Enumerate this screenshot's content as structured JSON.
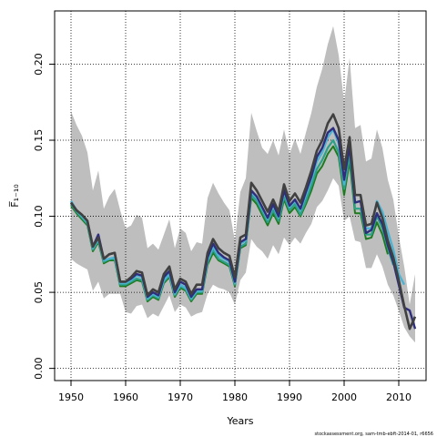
{
  "chart_data": {
    "type": "line",
    "title": "",
    "xlabel": "Years",
    "ylabel": "F̅₁₋₁₀",
    "xlim": [
      1947,
      2015
    ],
    "ylim": [
      -0.008,
      0.235
    ],
    "x_ticks": [
      1950,
      1960,
      1970,
      1980,
      1990,
      2000,
      2010
    ],
    "y_ticks": [
      0.0,
      0.05,
      0.1,
      0.15,
      0.2
    ],
    "y_tick_labels": [
      "0.00",
      "0.05",
      "0.10",
      "0.15",
      "0.20"
    ],
    "grid": true,
    "grid_style": "dotted",
    "confidence_band": {
      "color": "#bebebe",
      "x": [
        1950,
        1951,
        1952,
        1953,
        1954,
        1955,
        1956,
        1957,
        1958,
        1959,
        1960,
        1961,
        1962,
        1963,
        1964,
        1965,
        1966,
        1967,
        1968,
        1969,
        1970,
        1971,
        1972,
        1973,
        1974,
        1975,
        1976,
        1977,
        1978,
        1979,
        1980,
        1981,
        1982,
        1983,
        1984,
        1985,
        1986,
        1987,
        1988,
        1989,
        1990,
        1991,
        1992,
        1993,
        1994,
        1995,
        1996,
        1997,
        1998,
        1999,
        2000,
        2001,
        2002,
        2003,
        2004,
        2005,
        2006,
        2007,
        2008,
        2009,
        2010,
        2011,
        2012,
        2013
      ],
      "upper": [
        0.169,
        0.16,
        0.153,
        0.142,
        0.117,
        0.13,
        0.105,
        0.113,
        0.118,
        0.104,
        0.092,
        0.094,
        0.101,
        0.099,
        0.079,
        0.082,
        0.078,
        0.088,
        0.098,
        0.079,
        0.092,
        0.089,
        0.077,
        0.083,
        0.082,
        0.112,
        0.122,
        0.115,
        0.109,
        0.104,
        0.084,
        0.116,
        0.125,
        0.168,
        0.156,
        0.145,
        0.141,
        0.15,
        0.14,
        0.157,
        0.141,
        0.151,
        0.141,
        0.155,
        0.168,
        0.185,
        0.197,
        0.213,
        0.225,
        0.206,
        0.175,
        0.204,
        0.158,
        0.16,
        0.136,
        0.138,
        0.157,
        0.145,
        0.124,
        0.111,
        0.087,
        0.067,
        0.042,
        0.062
      ],
      "lower": [
        0.072,
        0.069,
        0.067,
        0.065,
        0.051,
        0.057,
        0.046,
        0.049,
        0.049,
        0.049,
        0.037,
        0.036,
        0.041,
        0.042,
        0.033,
        0.036,
        0.034,
        0.041,
        0.048,
        0.037,
        0.042,
        0.04,
        0.034,
        0.036,
        0.037,
        0.049,
        0.055,
        0.053,
        0.052,
        0.05,
        0.042,
        0.058,
        0.063,
        0.085,
        0.08,
        0.077,
        0.072,
        0.081,
        0.075,
        0.086,
        0.081,
        0.086,
        0.082,
        0.089,
        0.095,
        0.106,
        0.11,
        0.117,
        0.125,
        0.12,
        0.097,
        0.1,
        0.084,
        0.083,
        0.066,
        0.066,
        0.075,
        0.067,
        0.055,
        0.048,
        0.038,
        0.027,
        0.021,
        0.017
      ]
    },
    "series": [
      {
        "color": "#404040",
        "x": [
          1950,
          1951,
          1952,
          1953,
          1954,
          1955,
          1956,
          1957,
          1958,
          1959,
          1960,
          1961,
          1962,
          1963,
          1964,
          1965,
          1966,
          1967,
          1968,
          1969,
          1970,
          1971,
          1972,
          1973,
          1974,
          1975,
          1976,
          1977,
          1978,
          1979,
          1980,
          1981,
          1982,
          1983,
          1984,
          1985,
          1986,
          1987,
          1988,
          1989,
          1990,
          1991,
          1992,
          1993,
          1994,
          1995,
          1996,
          1997,
          1998,
          1999,
          2000,
          2001,
          2002,
          2003,
          2004,
          2005,
          2006,
          2007,
          2008,
          2009,
          2010,
          2011,
          2012,
          2013
        ],
        "values": [
          0.109,
          0.104,
          0.101,
          0.097,
          0.08,
          0.086,
          0.072,
          0.075,
          0.076,
          0.057,
          0.057,
          0.06,
          0.064,
          0.063,
          0.048,
          0.052,
          0.05,
          0.062,
          0.067,
          0.052,
          0.059,
          0.057,
          0.049,
          0.055,
          0.055,
          0.076,
          0.085,
          0.079,
          0.076,
          0.074,
          0.06,
          0.086,
          0.088,
          0.122,
          0.117,
          0.11,
          0.103,
          0.111,
          0.103,
          0.121,
          0.11,
          0.115,
          0.109,
          0.119,
          0.13,
          0.143,
          0.15,
          0.161,
          0.167,
          0.158,
          0.131,
          0.152,
          0.114,
          0.114,
          0.094,
          0.095,
          0.109,
          0.099,
          0.084,
          0.073,
          0.058,
          0.041,
          0.026,
          0.034
        ]
      },
      {
        "color": "#2e2e7c",
        "x": [
          1950,
          1951,
          1952,
          1953,
          1954,
          1955,
          1956,
          1957,
          1958,
          1959,
          1960,
          1961,
          1962,
          1963,
          1964,
          1965,
          1966,
          1967,
          1968,
          1969,
          1970,
          1971,
          1972,
          1973,
          1974,
          1975,
          1976,
          1977,
          1978,
          1979,
          1980,
          1981,
          1982,
          1983,
          1984,
          1985,
          1986,
          1987,
          1988,
          1989,
          1990,
          1991,
          1992,
          1993,
          1994,
          1995,
          1996,
          1997,
          1998,
          1999,
          2000,
          2001,
          2002,
          2003,
          2004,
          2005,
          2006,
          2007,
          2008,
          2009,
          2010,
          2011,
          2012,
          2013
        ],
        "values": [
          0.109,
          0.104,
          0.101,
          0.097,
          0.08,
          0.088,
          0.072,
          0.075,
          0.076,
          0.057,
          0.057,
          0.059,
          0.062,
          0.061,
          0.047,
          0.05,
          0.048,
          0.06,
          0.064,
          0.05,
          0.057,
          0.055,
          0.047,
          0.052,
          0.052,
          0.073,
          0.082,
          0.076,
          0.073,
          0.071,
          0.057,
          0.083,
          0.085,
          0.117,
          0.113,
          0.106,
          0.099,
          0.108,
          0.1,
          0.117,
          0.107,
          0.111,
          0.105,
          0.116,
          0.126,
          0.139,
          0.145,
          0.155,
          0.158,
          0.15,
          0.124,
          0.146,
          0.109,
          0.11,
          0.089,
          0.091,
          0.102,
          0.095,
          0.081,
          0.07,
          0.055,
          0.04,
          0.038,
          0.026
        ]
      },
      {
        "color": "#4eb3d3",
        "x": [
          1950,
          1951,
          1952,
          1953,
          1954,
          1955,
          1956,
          1957,
          1958,
          1959,
          1960,
          1961,
          1962,
          1963,
          1964,
          1965,
          1966,
          1967,
          1968,
          1969,
          1970,
          1971,
          1972,
          1973,
          1974,
          1975,
          1976,
          1977,
          1978,
          1979,
          1980,
          1981,
          1982,
          1983,
          1984,
          1985,
          1986,
          1987,
          1988,
          1989,
          1990,
          1991,
          1992,
          1993,
          1994,
          1995,
          1996,
          1997,
          1998,
          1999,
          2000,
          2001,
          2002,
          2003,
          2004,
          2005,
          2006,
          2007,
          2008,
          2009,
          2010,
          2011
        ],
        "values": [
          0.11,
          0.104,
          0.1,
          0.096,
          0.079,
          0.085,
          0.071,
          0.072,
          0.073,
          0.056,
          0.056,
          0.058,
          0.061,
          0.06,
          0.046,
          0.049,
          0.047,
          0.058,
          0.062,
          0.049,
          0.055,
          0.053,
          0.046,
          0.051,
          0.051,
          0.071,
          0.08,
          0.074,
          0.072,
          0.07,
          0.056,
          0.082,
          0.084,
          0.116,
          0.112,
          0.105,
          0.098,
          0.107,
          0.099,
          0.116,
          0.106,
          0.11,
          0.104,
          0.114,
          0.124,
          0.136,
          0.142,
          0.152,
          0.157,
          0.148,
          0.121,
          0.148,
          0.114,
          0.114,
          0.092,
          0.092,
          0.11,
          0.103,
          0.09,
          0.078,
          0.062,
          0.055
        ]
      },
      {
        "color": "#2ca089",
        "x": [
          1950,
          1951,
          1952,
          1953,
          1954,
          1955,
          1956,
          1957,
          1958,
          1959,
          1960,
          1961,
          1962,
          1963,
          1964,
          1965,
          1966,
          1967,
          1968,
          1969,
          1970,
          1971,
          1972,
          1973,
          1974,
          1975,
          1976,
          1977,
          1978,
          1979,
          1980,
          1981,
          1982,
          1983,
          1984,
          1985,
          1986,
          1987,
          1988,
          1989,
          1990,
          1991,
          1992,
          1993,
          1994,
          1995,
          1996,
          1997,
          1998,
          1999,
          2000,
          2001,
          2002,
          2003,
          2004,
          2005,
          2006,
          2007,
          2008,
          2009
        ],
        "values": [
          0.108,
          0.103,
          0.099,
          0.095,
          0.078,
          0.084,
          0.07,
          0.072,
          0.072,
          0.055,
          0.055,
          0.057,
          0.059,
          0.058,
          0.045,
          0.048,
          0.046,
          0.057,
          0.061,
          0.048,
          0.054,
          0.052,
          0.045,
          0.05,
          0.05,
          0.07,
          0.078,
          0.072,
          0.07,
          0.068,
          0.055,
          0.08,
          0.082,
          0.114,
          0.11,
          0.103,
          0.096,
          0.104,
          0.097,
          0.113,
          0.104,
          0.108,
          0.101,
          0.11,
          0.12,
          0.131,
          0.137,
          0.145,
          0.15,
          0.142,
          0.118,
          0.14,
          0.105,
          0.105,
          0.088,
          0.088,
          0.1,
          0.092,
          0.079,
          0.068
        ]
      },
      {
        "color": "#1f7a1f",
        "x": [
          1950,
          1951,
          1952,
          1953,
          1954,
          1955,
          1956,
          1957,
          1958,
          1959,
          1960,
          1961,
          1962,
          1963,
          1964,
          1965,
          1966,
          1967,
          1968,
          1969,
          1970,
          1971,
          1972,
          1973,
          1974,
          1975,
          1976,
          1977,
          1978,
          1979,
          1980,
          1981,
          1982,
          1983,
          1984,
          1985,
          1986,
          1987,
          1988,
          1989,
          1990,
          1991,
          1992,
          1993,
          1994,
          1995,
          1996,
          1997,
          1998,
          1999,
          2000,
          2001,
          2002,
          2003,
          2004,
          2005,
          2006,
          2007,
          2008
        ],
        "values": [
          0.107,
          0.102,
          0.098,
          0.094,
          0.077,
          0.083,
          0.069,
          0.071,
          0.071,
          0.054,
          0.054,
          0.056,
          0.058,
          0.057,
          0.044,
          0.047,
          0.045,
          0.056,
          0.06,
          0.047,
          0.053,
          0.051,
          0.044,
          0.049,
          0.049,
          0.068,
          0.076,
          0.071,
          0.069,
          0.067,
          0.054,
          0.079,
          0.081,
          0.112,
          0.108,
          0.101,
          0.094,
          0.102,
          0.095,
          0.111,
          0.102,
          0.106,
          0.1,
          0.108,
          0.117,
          0.128,
          0.133,
          0.141,
          0.146,
          0.139,
          0.114,
          0.136,
          0.102,
          0.102,
          0.085,
          0.086,
          0.096,
          0.088,
          0.075
        ]
      }
    ],
    "footer_text": "stockassessment.org, sam-tmb-ebft-2014-01, r6656"
  }
}
